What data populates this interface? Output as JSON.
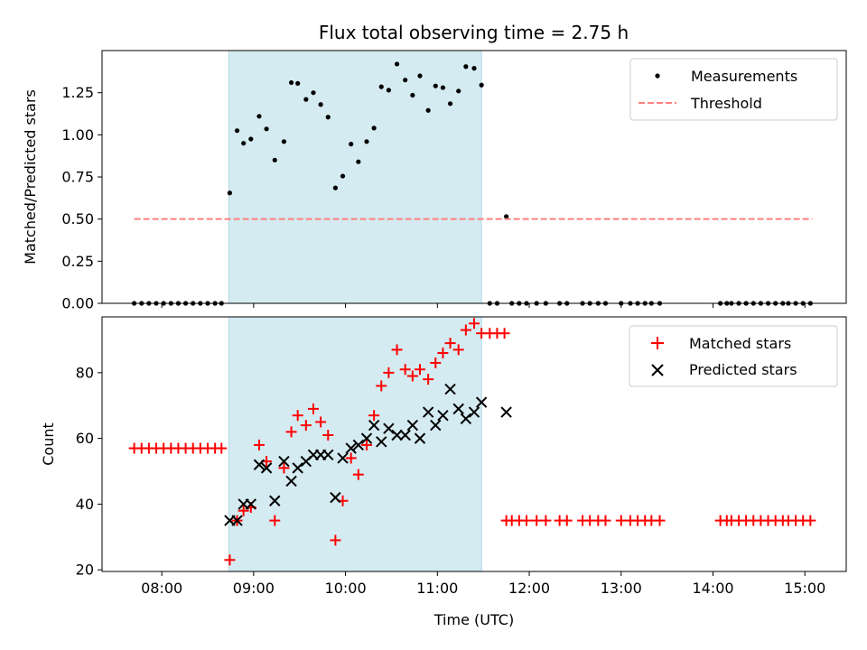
{
  "chart_data": [
    {
      "type": "scatter",
      "title": "Flux total observing time = 2.75 h",
      "xlabel": "",
      "ylabel": "Matched/Predicted stars",
      "x_unit": "hours UTC",
      "xlim": [
        7.35,
        15.45
      ],
      "ylim": [
        0,
        1.5
      ],
      "y_ticks": [
        0,
        0.25,
        0.5,
        0.75,
        1.0,
        1.25
      ],
      "y_tick_labels": [
        "0.00",
        "0.25",
        "0.50",
        "0.75",
        "1.00",
        "1.25"
      ],
      "shaded_interval": [
        8.73,
        11.48
      ],
      "shade_color": "#d4ebf1",
      "legend": {
        "position": "top-right",
        "entries": [
          "Measurements",
          "Threshold"
        ]
      },
      "series": [
        {
          "name": "Measurements",
          "marker": "dot",
          "color": "#000000",
          "points": [
            [
              7.7,
              0
            ],
            [
              7.78,
              0
            ],
            [
              7.86,
              0
            ],
            [
              7.94,
              0
            ],
            [
              8.02,
              0
            ],
            [
              8.1,
              0
            ],
            [
              8.18,
              0
            ],
            [
              8.26,
              0
            ],
            [
              8.34,
              0
            ],
            [
              8.42,
              0
            ],
            [
              8.5,
              0
            ],
            [
              8.58,
              0
            ],
            [
              8.65,
              0
            ],
            [
              8.74,
              0.655
            ],
            [
              8.82,
              1.025
            ],
            [
              8.89,
              0.95
            ],
            [
              8.97,
              0.975
            ],
            [
              9.06,
              1.11
            ],
            [
              9.14,
              1.035
            ],
            [
              9.23,
              0.85
            ],
            [
              9.33,
              0.96
            ],
            [
              9.41,
              1.31
            ],
            [
              9.48,
              1.305
            ],
            [
              9.57,
              1.21
            ],
            [
              9.65,
              1.25
            ],
            [
              9.73,
              1.18
            ],
            [
              9.81,
              1.105
            ],
            [
              9.89,
              0.685
            ],
            [
              9.97,
              0.755
            ],
            [
              10.06,
              0.945
            ],
            [
              10.14,
              0.84
            ],
            [
              10.23,
              0.96
            ],
            [
              10.31,
              1.04
            ],
            [
              10.39,
              1.285
            ],
            [
              10.47,
              1.265
            ],
            [
              10.56,
              1.42
            ],
            [
              10.65,
              1.325
            ],
            [
              10.73,
              1.235
            ],
            [
              10.81,
              1.35
            ],
            [
              10.9,
              1.145
            ],
            [
              10.98,
              1.29
            ],
            [
              11.06,
              1.28
            ],
            [
              11.14,
              1.185
            ],
            [
              11.23,
              1.26
            ],
            [
              11.31,
              1.405
            ],
            [
              11.4,
              1.395
            ],
            [
              11.48,
              1.295
            ],
            [
              11.57,
              0
            ],
            [
              11.65,
              0
            ],
            [
              11.75,
              0.515
            ],
            [
              11.81,
              0
            ],
            [
              11.89,
              0
            ],
            [
              11.97,
              0
            ],
            [
              12.08,
              0
            ],
            [
              12.18,
              0
            ],
            [
              12.33,
              0
            ],
            [
              12.41,
              0
            ],
            [
              12.58,
              0
            ],
            [
              12.66,
              0
            ],
            [
              12.75,
              0
            ],
            [
              12.83,
              0
            ],
            [
              13.0,
              0
            ],
            [
              13.1,
              0
            ],
            [
              13.18,
              0
            ],
            [
              13.26,
              0
            ],
            [
              13.33,
              0
            ],
            [
              13.42,
              0
            ],
            [
              14.08,
              0
            ],
            [
              14.15,
              0
            ],
            [
              14.2,
              0
            ],
            [
              14.28,
              0
            ],
            [
              14.36,
              0
            ],
            [
              14.44,
              0
            ],
            [
              14.52,
              0
            ],
            [
              14.6,
              0
            ],
            [
              14.68,
              0
            ],
            [
              14.76,
              0
            ],
            [
              14.82,
              0
            ],
            [
              14.9,
              0
            ],
            [
              14.98,
              0
            ],
            [
              15.06,
              0
            ]
          ]
        },
        {
          "name": "Threshold",
          "marker": "dashed-line",
          "color": "#ff8080",
          "points": [
            [
              7.7,
              0.5
            ],
            [
              15.08,
              0.5
            ]
          ]
        }
      ]
    },
    {
      "type": "scatter",
      "title": "",
      "xlabel": "Time (UTC)",
      "ylabel": "Count",
      "x_unit": "hours UTC",
      "xlim": [
        7.35,
        15.45
      ],
      "ylim": [
        19.5,
        97
      ],
      "y_ticks": [
        20,
        40,
        60,
        80
      ],
      "y_tick_labels": [
        "20",
        "40",
        "60",
        "80"
      ],
      "x_ticks": [
        8,
        9,
        10,
        11,
        12,
        13,
        14,
        15
      ],
      "x_tick_labels": [
        "08:00",
        "09:00",
        "10:00",
        "11:00",
        "12:00",
        "13:00",
        "14:00",
        "15:00"
      ],
      "shaded_interval": [
        8.73,
        11.48
      ],
      "shade_color": "#d4ebf1",
      "legend": {
        "position": "top-right",
        "entries": [
          "Matched stars",
          "Predicted stars"
        ]
      },
      "series": [
        {
          "name": "Matched stars",
          "marker": "plus",
          "color": "#ff0000",
          "points": [
            [
              7.7,
              57
            ],
            [
              7.78,
              57
            ],
            [
              7.86,
              57
            ],
            [
              7.94,
              57
            ],
            [
              8.02,
              57
            ],
            [
              8.1,
              57
            ],
            [
              8.18,
              57
            ],
            [
              8.26,
              57
            ],
            [
              8.34,
              57
            ],
            [
              8.42,
              57
            ],
            [
              8.5,
              57
            ],
            [
              8.58,
              57
            ],
            [
              8.65,
              57
            ],
            [
              8.74,
              23
            ],
            [
              8.82,
              35
            ],
            [
              8.89,
              38
            ],
            [
              8.97,
              39
            ],
            [
              9.06,
              58
            ],
            [
              9.14,
              53
            ],
            [
              9.23,
              35
            ],
            [
              9.33,
              51
            ],
            [
              9.41,
              62
            ],
            [
              9.48,
              67
            ],
            [
              9.57,
              64
            ],
            [
              9.65,
              69
            ],
            [
              9.73,
              65
            ],
            [
              9.81,
              61
            ],
            [
              9.89,
              29
            ],
            [
              9.97,
              41
            ],
            [
              10.06,
              54
            ],
            [
              10.14,
              49
            ],
            [
              10.23,
              58
            ],
            [
              10.31,
              67
            ],
            [
              10.39,
              76
            ],
            [
              10.47,
              80
            ],
            [
              10.56,
              87
            ],
            [
              10.65,
              81
            ],
            [
              10.73,
              79
            ],
            [
              10.81,
              81
            ],
            [
              10.9,
              78
            ],
            [
              10.98,
              83
            ],
            [
              11.06,
              86
            ],
            [
              11.14,
              89
            ],
            [
              11.23,
              87
            ],
            [
              11.31,
              93
            ],
            [
              11.4,
              95
            ],
            [
              11.48,
              92
            ],
            [
              11.57,
              92
            ],
            [
              11.65,
              92
            ],
            [
              11.73,
              92
            ],
            [
              11.75,
              35
            ],
            [
              11.81,
              35
            ],
            [
              11.89,
              35
            ],
            [
              11.97,
              35
            ],
            [
              12.08,
              35
            ],
            [
              12.18,
              35
            ],
            [
              12.33,
              35
            ],
            [
              12.41,
              35
            ],
            [
              12.58,
              35
            ],
            [
              12.66,
              35
            ],
            [
              12.75,
              35
            ],
            [
              12.83,
              35
            ],
            [
              13.0,
              35
            ],
            [
              13.1,
              35
            ],
            [
              13.18,
              35
            ],
            [
              13.26,
              35
            ],
            [
              13.33,
              35
            ],
            [
              13.42,
              35
            ],
            [
              14.08,
              35
            ],
            [
              14.15,
              35
            ],
            [
              14.2,
              35
            ],
            [
              14.28,
              35
            ],
            [
              14.36,
              35
            ],
            [
              14.44,
              35
            ],
            [
              14.52,
              35
            ],
            [
              14.6,
              35
            ],
            [
              14.68,
              35
            ],
            [
              14.76,
              35
            ],
            [
              14.82,
              35
            ],
            [
              14.9,
              35
            ],
            [
              14.98,
              35
            ],
            [
              15.06,
              35
            ]
          ]
        },
        {
          "name": "Predicted stars",
          "marker": "cross",
          "color": "#000000",
          "points": [
            [
              8.74,
              35
            ],
            [
              8.82,
              35
            ],
            [
              8.89,
              40
            ],
            [
              8.97,
              40
            ],
            [
              9.06,
              52
            ],
            [
              9.14,
              51
            ],
            [
              9.23,
              41
            ],
            [
              9.33,
              53
            ],
            [
              9.41,
              47
            ],
            [
              9.48,
              51
            ],
            [
              9.57,
              53
            ],
            [
              9.65,
              55
            ],
            [
              9.73,
              55
            ],
            [
              9.81,
              55
            ],
            [
              9.89,
              42
            ],
            [
              9.97,
              54
            ],
            [
              10.06,
              57
            ],
            [
              10.14,
              58
            ],
            [
              10.23,
              60
            ],
            [
              10.31,
              64
            ],
            [
              10.39,
              59
            ],
            [
              10.47,
              63
            ],
            [
              10.56,
              61
            ],
            [
              10.65,
              61
            ],
            [
              10.73,
              64
            ],
            [
              10.81,
              60
            ],
            [
              10.9,
              68
            ],
            [
              10.98,
              64
            ],
            [
              11.06,
              67
            ],
            [
              11.14,
              75
            ],
            [
              11.23,
              69
            ],
            [
              11.31,
              66
            ],
            [
              11.4,
              68
            ],
            [
              11.48,
              71
            ],
            [
              11.75,
              68
            ]
          ]
        }
      ]
    }
  ]
}
